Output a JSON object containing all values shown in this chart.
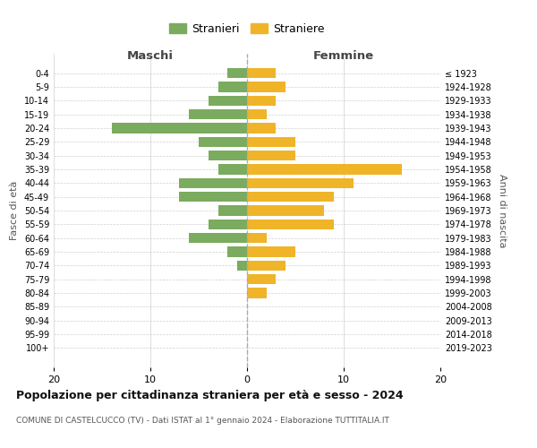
{
  "age_groups": [
    "0-4",
    "5-9",
    "10-14",
    "15-19",
    "20-24",
    "25-29",
    "30-34",
    "35-39",
    "40-44",
    "45-49",
    "50-54",
    "55-59",
    "60-64",
    "65-69",
    "70-74",
    "75-79",
    "80-84",
    "85-89",
    "90-94",
    "95-99",
    "100+"
  ],
  "birth_years": [
    "2019-2023",
    "2014-2018",
    "2009-2013",
    "2004-2008",
    "1999-2003",
    "1994-1998",
    "1989-1993",
    "1984-1988",
    "1979-1983",
    "1974-1978",
    "1969-1973",
    "1964-1968",
    "1959-1963",
    "1954-1958",
    "1949-1953",
    "1944-1948",
    "1939-1943",
    "1934-1938",
    "1929-1933",
    "1924-1928",
    "≤ 1923"
  ],
  "maschi": [
    2,
    3,
    4,
    6,
    14,
    5,
    4,
    3,
    7,
    7,
    3,
    4,
    6,
    2,
    1,
    0,
    0,
    0,
    0,
    0,
    0
  ],
  "femmine": [
    3,
    4,
    3,
    2,
    3,
    5,
    5,
    16,
    11,
    9,
    8,
    9,
    2,
    5,
    4,
    3,
    2,
    0,
    0,
    0,
    0
  ],
  "male_color": "#7aab5e",
  "female_color": "#f0b429",
  "title": "Popolazione per cittadinanza straniera per età e sesso - 2024",
  "subtitle": "COMUNE DI CASTELCUCCO (TV) - Dati ISTAT al 1° gennaio 2024 - Elaborazione TUTTITALIA.IT",
  "xlabel_left": "Maschi",
  "xlabel_right": "Femmine",
  "ylabel_left": "Fasce di età",
  "ylabel_right": "Anni di nascita",
  "legend_male": "Stranieri",
  "legend_female": "Straniere",
  "xlim": 20,
  "background_color": "#ffffff",
  "grid_color": "#d0d0d0"
}
